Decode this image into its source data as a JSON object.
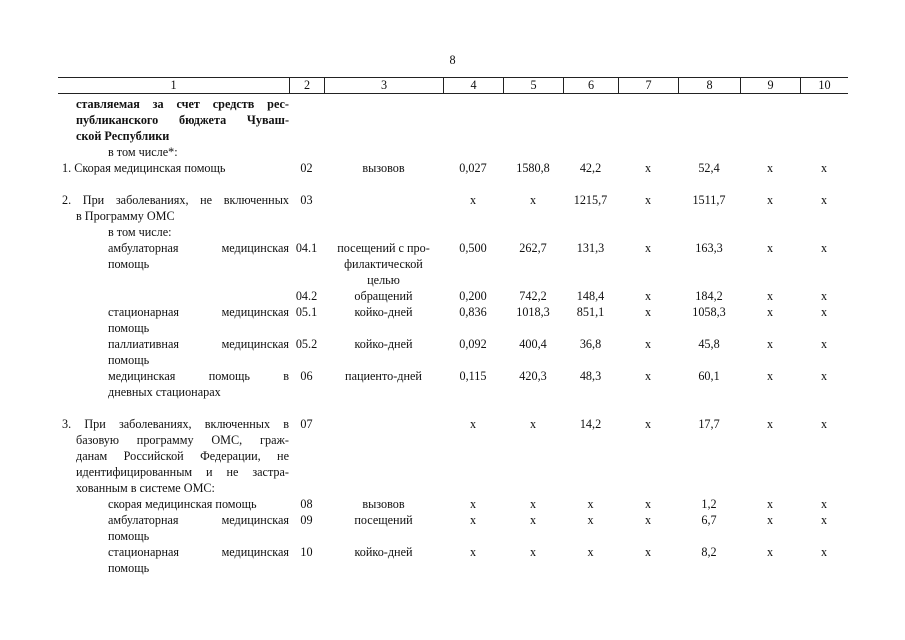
{
  "page_number": "8",
  "header": [
    "1",
    "2",
    "3",
    "4",
    "5",
    "6",
    "7",
    "8",
    "9",
    "10"
  ],
  "rows": [
    {
      "kind": "heading",
      "lines": [
        "ставляемая за счет средств рес-",
        "публиканского бюджета Чуваш-",
        "ской Республики"
      ],
      "cells": [
        "",
        "",
        "",
        "",
        "",
        "",
        "",
        "",
        ""
      ]
    },
    {
      "kind": "sub",
      "lines": [
        "в том числе*:"
      ],
      "cells": [
        "",
        "",
        "",
        "",
        "",
        "",
        "",
        "",
        ""
      ]
    },
    {
      "kind": "main",
      "lines": [
        "1. Скорая медицинская помощь"
      ],
      "cells": [
        "02",
        "вызовов",
        "0,027",
        "1580,8",
        "42,2",
        "х",
        "52,4",
        "х",
        "х"
      ]
    },
    {
      "kind": "main",
      "lines": [
        "2. При заболеваниях, не включенных",
        "в Программу ОМС"
      ],
      "cells": [
        "03",
        "",
        "х",
        "х",
        "1215,7",
        "х",
        "1511,7",
        "х",
        "х"
      ]
    },
    {
      "kind": "sub",
      "lines": [
        "в том числе:"
      ],
      "cells": [
        "",
        "",
        "",
        "",
        "",
        "",
        "",
        "",
        ""
      ]
    },
    {
      "kind": "item",
      "lines": [
        "амбулаторная медицинская",
        "помощь"
      ],
      "cells": [
        "04.1",
        "посещений с про-\nфилактической\nцелью",
        "0,500",
        "262,7",
        "131,3",
        "х",
        "163,3",
        "х",
        "х"
      ]
    },
    {
      "kind": "item",
      "lines": [],
      "cells": [
        "04.2",
        "обращений",
        "0,200",
        "742,2",
        "148,4",
        "х",
        "184,2",
        "х",
        "х"
      ]
    },
    {
      "kind": "item",
      "lines": [
        "стационарная медицинская",
        "помощь"
      ],
      "cells": [
        "05.1",
        "койко-дней",
        "0,836",
        "1018,3",
        "851,1",
        "х",
        "1058,3",
        "х",
        "х"
      ]
    },
    {
      "kind": "item",
      "lines": [
        "паллиативная медицинская",
        "помощь"
      ],
      "cells": [
        "05.2",
        "койко-дней",
        "0,092",
        "400,4",
        "36,8",
        "х",
        "45,8",
        "х",
        "х"
      ]
    },
    {
      "kind": "item",
      "lines": [
        "медицинская помощь в",
        "дневных стационарах"
      ],
      "cells": [
        "06",
        "пациенто-дней",
        "0,115",
        "420,3",
        "48,3",
        "х",
        "60,1",
        "х",
        "х"
      ]
    },
    {
      "kind": "main",
      "lines": [
        "3. При заболеваниях, включенных в",
        "базовую программу ОМС, граж-",
        "данам Российской Федерации, не",
        "идентифицированным и не застра-",
        "хованным в системе ОМС:"
      ],
      "cells": [
        "07",
        "",
        "х",
        "х",
        "14,2",
        "х",
        "17,7",
        "х",
        "х"
      ]
    },
    {
      "kind": "item",
      "lines": [
        "скорая медицинская помощь"
      ],
      "cells": [
        "08",
        "вызовов",
        "х",
        "х",
        "х",
        "х",
        "1,2",
        "х",
        "х"
      ]
    },
    {
      "kind": "item",
      "lines": [
        "амбулаторная медицинская",
        "помощь"
      ],
      "cells": [
        "09",
        "посещений",
        "х",
        "х",
        "х",
        "х",
        "6,7",
        "х",
        "х"
      ]
    },
    {
      "kind": "item",
      "lines": [
        "стационарная медицинская",
        "помощь"
      ],
      "cells": [
        "10",
        "койко-дней",
        "х",
        "х",
        "х",
        "х",
        "8,2",
        "х",
        "х"
      ]
    }
  ]
}
